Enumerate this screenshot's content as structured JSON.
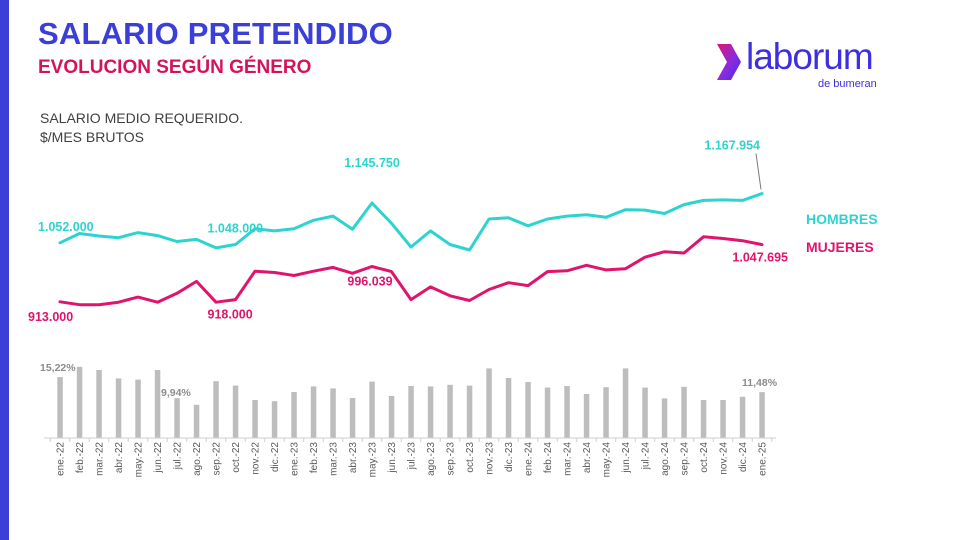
{
  "header": {
    "title": "SALARIO PRETENDIDO",
    "subtitle": "EVOLUCION SEGÚN GÉNERO",
    "desc_line1": "SALARIO MEDIO REQUERIDO.",
    "desc_line2": "$/MES BRUTOS"
  },
  "logo": {
    "word": "laborum",
    "sub": "de bumeran"
  },
  "colors": {
    "title": "#3b3fd8",
    "subtitle": "#d4145a",
    "left_bar": "#3b3fd8",
    "hombres": "#2dd4cf",
    "mujeres": "#e0146c",
    "bars": "#bdbdbd"
  },
  "chart_data": {
    "type": "line",
    "categories": [
      "ene.-22",
      "feb.-22",
      "mar.-22",
      "abr.-22",
      "may.-22",
      "jun.-22",
      "jul.-22",
      "ago.-22",
      "sep.-22",
      "oct.-22",
      "nov.-22",
      "dic.-22",
      "ene.-23",
      "feb.-23",
      "mar.-23",
      "abr.-23",
      "may.-23",
      "jun.-23",
      "jul.-23",
      "ago.-23",
      "sep.-23",
      "oct.-23",
      "nov.-23",
      "dic.-23",
      "ene.-24",
      "feb.-24",
      "mar.-24",
      "abr.-24",
      "may.-24",
      "jun.-24",
      "jul.-24",
      "ago.-24",
      "sep.-24",
      "oct.-24",
      "nov.-24",
      "dic.-24",
      "ene.-25"
    ],
    "series": [
      {
        "name": "HOMBRES",
        "values": [
          1052000,
          1074000,
          1068000,
          1064000,
          1076000,
          1069000,
          1055000,
          1060000,
          1040000,
          1048000,
          1085000,
          1080000,
          1085000,
          1105000,
          1115000,
          1084000,
          1145750,
          1098000,
          1042000,
          1080000,
          1048000,
          1035000,
          1108000,
          1111000,
          1092000,
          1108000,
          1115000,
          1118000,
          1112000,
          1130000,
          1129000,
          1121000,
          1142000,
          1152000,
          1153000,
          1152000,
          1167954
        ]
      },
      {
        "name": "MUJERES",
        "values": [
          913000,
          906000,
          906000,
          912000,
          924000,
          912000,
          933000,
          961000,
          912000,
          918000,
          985000,
          982000,
          975000,
          985000,
          994000,
          980000,
          996039,
          984000,
          918000,
          948000,
          927000,
          916000,
          942000,
          958000,
          951000,
          984000,
          986000,
          999000,
          988000,
          991000,
          1018000,
          1031000,
          1028000,
          1066000,
          1062000,
          1057000,
          1047695
        ]
      }
    ],
    "labels": [
      {
        "series": "HOMBRES",
        "index": 0,
        "text": "1.052.000"
      },
      {
        "series": "HOMBRES",
        "index": 9,
        "text": "1.048.000"
      },
      {
        "series": "HOMBRES",
        "index": 16,
        "text": "1.145.750"
      },
      {
        "series": "HOMBRES",
        "index": 36,
        "text": "1.167.954"
      },
      {
        "series": "MUJERES",
        "index": 0,
        "text": "913.000"
      },
      {
        "series": "MUJERES",
        "index": 9,
        "text": "918.000"
      },
      {
        "series": "MUJERES",
        "index": 16,
        "text": "996.039"
      },
      {
        "series": "MUJERES",
        "index": 36,
        "text": "1.047.695"
      }
    ],
    "legend": [
      {
        "series": "HOMBRES",
        "text": "HOMBRES"
      },
      {
        "series": "MUJERES",
        "text": "MUJERES"
      }
    ],
    "gap_bars": {
      "type": "bar",
      "values": [
        15.22,
        17.8,
        17.0,
        14.9,
        14.6,
        17.0,
        9.94,
        8.3,
        14.2,
        13.1,
        9.5,
        9.2,
        11.5,
        12.9,
        12.4,
        10.0,
        14.1,
        10.5,
        13.0,
        12.9,
        13.3,
        13.1,
        17.4,
        15.0,
        14.0,
        12.6,
        13.0,
        11.0,
        12.7,
        17.4,
        12.6,
        9.9,
        12.8,
        9.5,
        9.5,
        10.3,
        11.48
      ],
      "labels": [
        {
          "index": 0,
          "text": "15,22%"
        },
        {
          "index": 6,
          "text": "9,94%"
        },
        {
          "index": 36,
          "text": "11,48%"
        }
      ]
    }
  }
}
